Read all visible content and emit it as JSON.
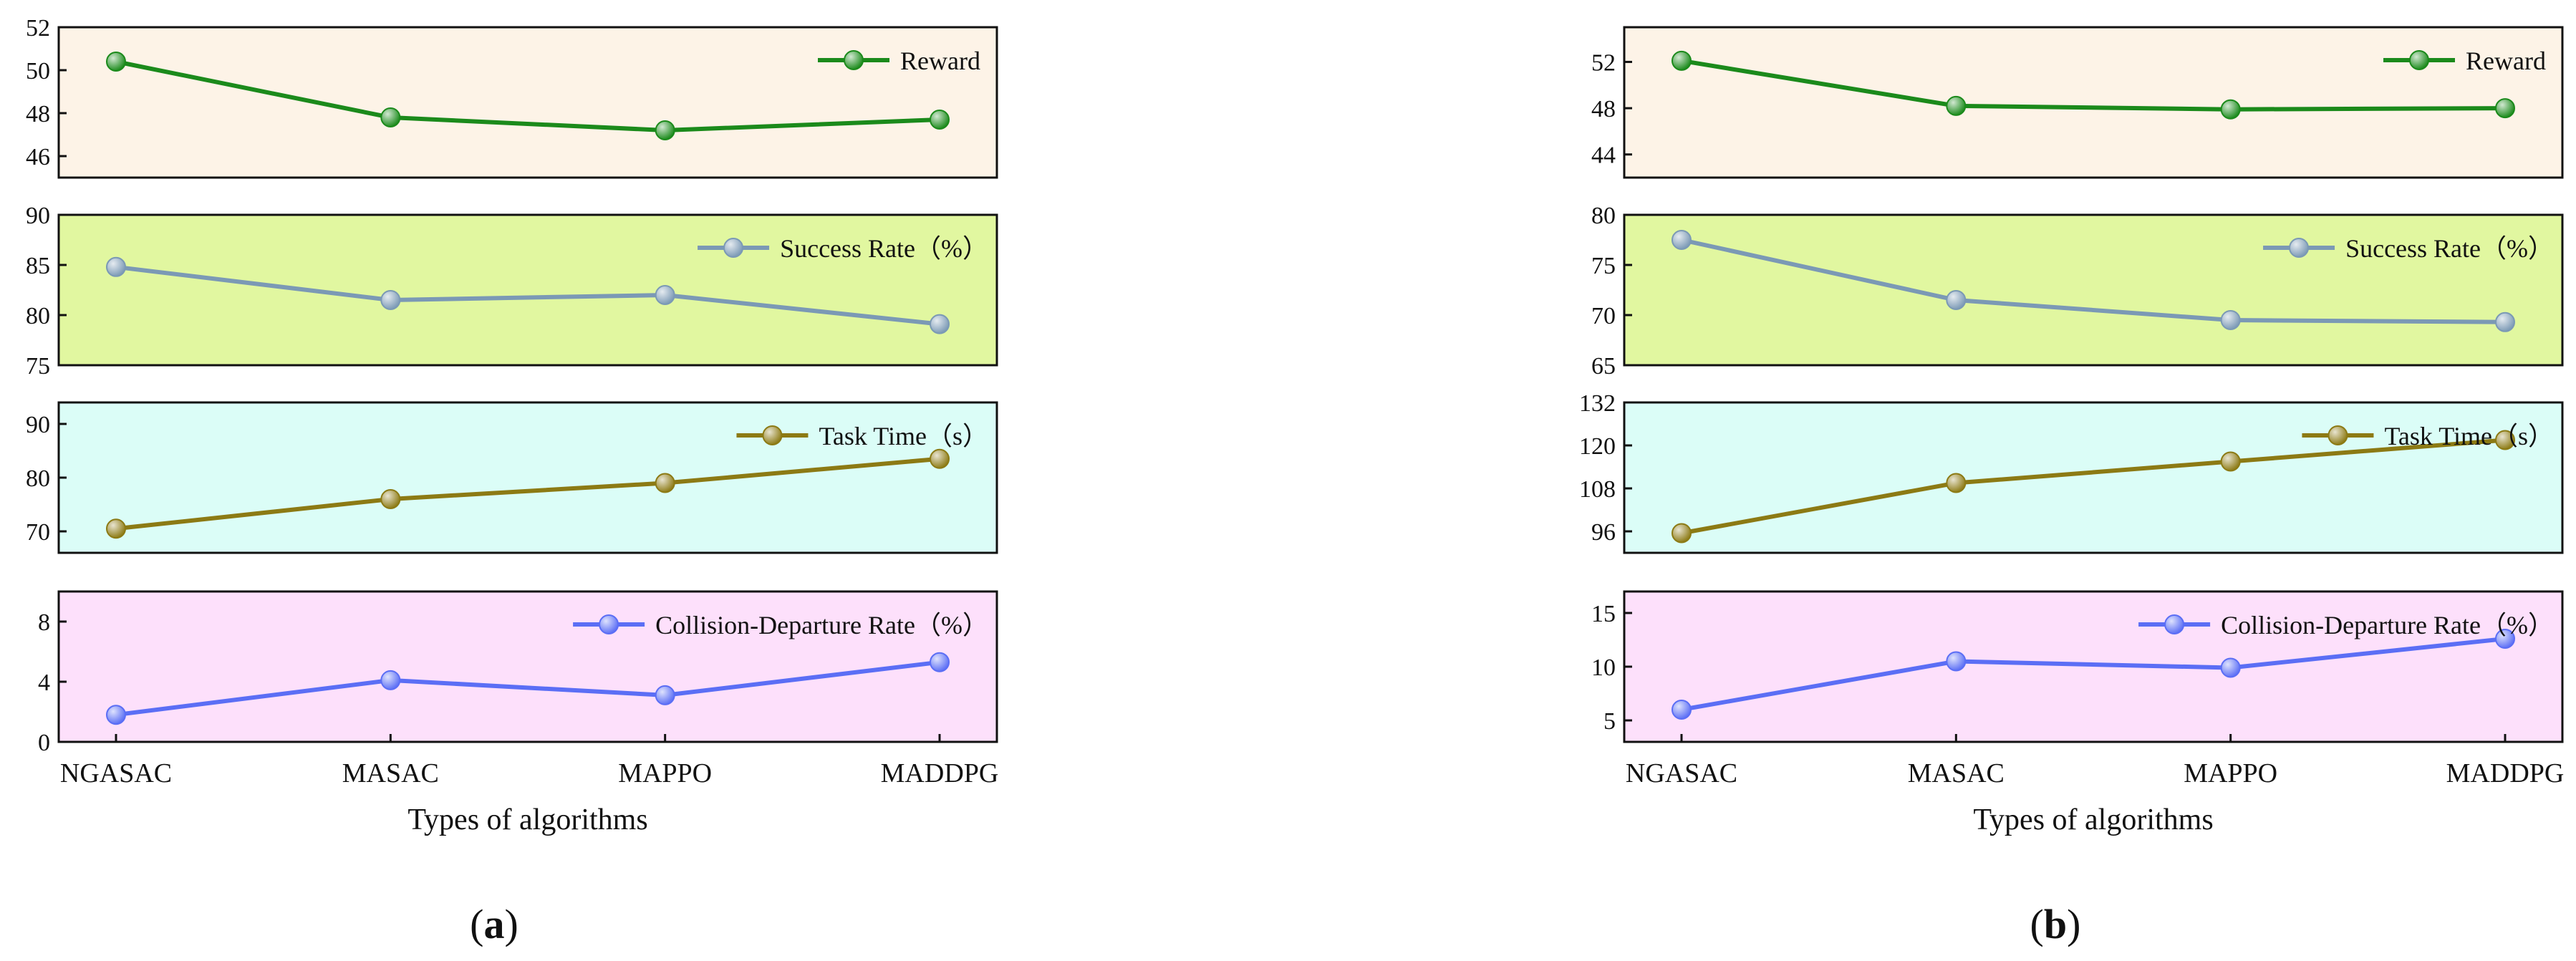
{
  "figure": {
    "panel_labels": [
      {
        "open": "(",
        "letter": "a",
        "close": ")"
      },
      {
        "open": "(",
        "letter": "b",
        "close": ")"
      }
    ]
  },
  "chart_data": [
    {
      "id": "a",
      "type": "line",
      "categories": [
        "NGASAC",
        "MASAC",
        "MAPPO",
        "MADDPG"
      ],
      "xlabel": "Types of algorithms",
      "grid": false,
      "legend_position": "top-right",
      "subplots": [
        {
          "name": "Reward",
          "values": [
            50.4,
            47.8,
            47.2,
            47.7
          ],
          "ylim": [
            45,
            52
          ],
          "ticks": [
            46,
            48,
            50,
            52
          ],
          "color": "#1b8a1b",
          "background": "#fdf3e7"
        },
        {
          "name": "Success Rate（%）",
          "values": [
            84.8,
            81.5,
            82.0,
            79.1
          ],
          "ylim": [
            75,
            90
          ],
          "ticks": [
            75,
            80,
            85,
            90
          ],
          "color": "#7b99b5",
          "background": "#e1f7a0"
        },
        {
          "name": "Task Time（s）",
          "values": [
            70.5,
            76.0,
            79.0,
            83.5
          ],
          "ylim": [
            66,
            94
          ],
          "ticks": [
            70,
            80,
            90
          ],
          "color": "#8c7a14",
          "background": "#dbfdf7"
        },
        {
          "name": "Collision-Departure Rate（%）",
          "values": [
            1.8,
            4.1,
            3.1,
            5.3
          ],
          "ylim": [
            0,
            10
          ],
          "ticks": [
            0,
            4,
            8
          ],
          "color": "#5b6ef5",
          "background": "#fde0fb"
        }
      ]
    },
    {
      "id": "b",
      "type": "line",
      "categories": [
        "NGASAC",
        "MASAC",
        "MAPPO",
        "MADDPG"
      ],
      "xlabel": "Types of algorithms",
      "grid": false,
      "legend_position": "top-right",
      "subplots": [
        {
          "name": "Reward",
          "values": [
            52.1,
            48.2,
            47.9,
            48.0
          ],
          "ylim": [
            42,
            55
          ],
          "ticks": [
            44,
            48,
            52
          ],
          "color": "#1b8a1b",
          "background": "#fdf3e7"
        },
        {
          "name": "Success Rate（%）",
          "values": [
            77.5,
            71.5,
            69.5,
            69.3
          ],
          "ylim": [
            65,
            80
          ],
          "ticks": [
            65,
            70,
            75,
            80
          ],
          "color": "#7b99b5",
          "background": "#e1f7a0"
        },
        {
          "name": "Task Time（s）",
          "values": [
            95.5,
            109.5,
            115.5,
            121.5
          ],
          "ylim": [
            90,
            132
          ],
          "ticks": [
            96,
            108,
            120,
            132
          ],
          "color": "#8c7a14",
          "background": "#dbfdf7"
        },
        {
          "name": "Collision-Departure Rate（%）",
          "values": [
            6.0,
            10.5,
            9.9,
            12.6
          ],
          "ylim": [
            3,
            17
          ],
          "ticks": [
            5,
            10,
            15
          ],
          "color": "#5b6ef5",
          "background": "#fde0fb"
        }
      ]
    }
  ]
}
